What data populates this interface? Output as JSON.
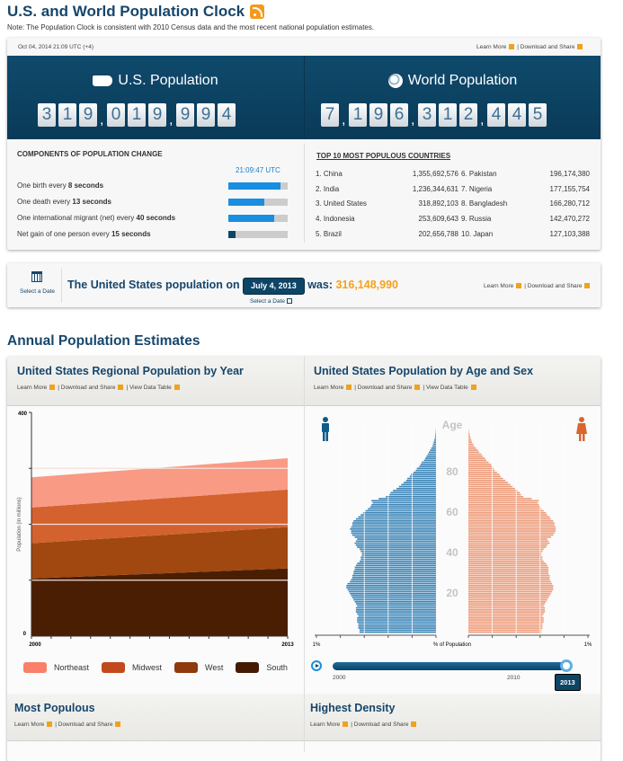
{
  "header": {
    "title": "U.S. and World Population Clock",
    "rss_icon": "rss-icon",
    "note": "Note: The Population Clock is consistent with 2010 Census data and the most recent national population estimates."
  },
  "clock": {
    "datetime": "Oct 04, 2014 21:09 UTC (+4)",
    "learn_more": "Learn More",
    "download_share": "| Download and Share",
    "us": {
      "title": "U.S. Population",
      "icon": "us-map-icon",
      "digits": [
        "3",
        "1",
        "9",
        ",",
        "0",
        "1",
        "9",
        ",",
        "9",
        "9",
        "4"
      ]
    },
    "world": {
      "title": "World Population",
      "icon": "globe-icon",
      "digits": [
        "7",
        ",",
        "1",
        "9",
        "6",
        ",",
        "3",
        "1",
        "2",
        ",",
        "4",
        "4",
        "5"
      ]
    },
    "components": {
      "heading": "COMPONENTS OF POPULATION CHANGE",
      "time": "21:09:47 UTC",
      "items": [
        {
          "prefix": "One birth every ",
          "bold": "8 seconds",
          "progress": 0.88,
          "color": "#1a8ee0"
        },
        {
          "prefix": "One death every ",
          "bold": "13 seconds",
          "progress": 0.6,
          "color": "#1a8ee0"
        },
        {
          "prefix": "One international migrant (net) every ",
          "bold": "40 seconds",
          "progress": 0.78,
          "color": "#1a8ee0"
        },
        {
          "prefix": "Net gain of one person every ",
          "bold": "15 seconds",
          "progress": 0.12,
          "color": "#0d4566"
        }
      ]
    },
    "top10": {
      "heading": "TOP 10 MOST POPULOUS COUNTRIES",
      "rows": [
        {
          "l": "1. China",
          "lv": "1,355,692,576",
          "r": "6. Pakistan",
          "rv": "196,174,380"
        },
        {
          "l": "2. India",
          "lv": "1,236,344,631",
          "r": "7. Nigeria",
          "rv": "177,155,754"
        },
        {
          "l": "3. United States",
          "lv": "318,892,103",
          "r": "8. Bangladesh",
          "rv": "166,280,712"
        },
        {
          "l": "4. Indonesia",
          "lv": "253,609,643",
          "r": "9. Russia",
          "rv": "142,470,272"
        },
        {
          "l": "5. Brazil",
          "lv": "202,656,788",
          "r": "10. Japan",
          "rv": "127,103,388"
        }
      ]
    }
  },
  "date_lookup": {
    "select_label": "Select a Date",
    "prefix": "The United States population on",
    "date": "July 4, 2013",
    "was": "was:",
    "value": "316,148,990",
    "select_below": "Select a Date",
    "learn_more": "Learn More",
    "download_share": "| Download and Share"
  },
  "section_title": "Annual Population Estimates",
  "regional": {
    "title": "United States Regional Population by Year",
    "links": [
      "Learn More",
      "| Download and Share",
      "| View Data Table"
    ]
  },
  "pyramid_panel": {
    "title": "United States Population by Age and Sex",
    "links": [
      "Learn More",
      "| Download and Share",
      "| View Data Table"
    ],
    "slider": {
      "value": 2013,
      "min": 2000,
      "max": 2013,
      "labels": [
        "2000",
        "2010"
      ],
      "tooltip": "2013"
    }
  },
  "most_populous": {
    "title": "Most Populous",
    "links": [
      "Learn More",
      "| Download and Share"
    ]
  },
  "highest_density": {
    "title": "Highest Density",
    "links": [
      "Learn More",
      "| Download and Share"
    ]
  },
  "chart_data": [
    {
      "type": "area",
      "stacked": true,
      "xlabel": "",
      "ylabel": "Population (in millions)",
      "ylim": [
        0,
        400
      ],
      "yticks": [
        "0",
        "400"
      ],
      "x": [
        2000,
        2013
      ],
      "xticks": [
        "2000",
        "2013"
      ],
      "grid": true,
      "legend": "bottom",
      "series": [
        {
          "name": "South",
          "values": [
            103,
            121
          ],
          "color": "#4a1e03"
        },
        {
          "name": "West",
          "values": [
            63,
            74
          ],
          "color": "#a0480f"
        },
        {
          "name": "Midwest",
          "values": [
            64,
            67
          ],
          "color": "#d4622e"
        },
        {
          "name": "Northeast",
          "values": [
            54,
            56
          ],
          "color": "#f99a85"
        }
      ],
      "legend_colors": [
        "#f9806a",
        "#c1491c",
        "#8e3a0c",
        "#451a03"
      ]
    },
    {
      "type": "bar",
      "orientation": "horizontal",
      "title": "",
      "xlabel": "% of Population",
      "ylabel": "Age",
      "xlim_label": "1%",
      "age_ticks": [
        "20",
        "40",
        "60",
        "80"
      ],
      "year": 2013,
      "male_color": "#3d86b8",
      "female_color": "#ee9c7b",
      "male": [
        0.64,
        0.64,
        0.65,
        0.65,
        0.65,
        0.66,
        0.66,
        0.66,
        0.65,
        0.66,
        0.67,
        0.67,
        0.67,
        0.66,
        0.67,
        0.68,
        0.69,
        0.7,
        0.71,
        0.72,
        0.73,
        0.74,
        0.75,
        0.75,
        0.74,
        0.72,
        0.71,
        0.7,
        0.7,
        0.69,
        0.69,
        0.68,
        0.68,
        0.67,
        0.66,
        0.64,
        0.63,
        0.63,
        0.62,
        0.62,
        0.63,
        0.64,
        0.66,
        0.67,
        0.68,
        0.67,
        0.66,
        0.68,
        0.7,
        0.71,
        0.71,
        0.72,
        0.71,
        0.7,
        0.7,
        0.69,
        0.67,
        0.65,
        0.63,
        0.61,
        0.59,
        0.57,
        0.55,
        0.54,
        0.53,
        0.54,
        0.48,
        0.42,
        0.39,
        0.38,
        0.36,
        0.33,
        0.31,
        0.29,
        0.27,
        0.25,
        0.24,
        0.22,
        0.21,
        0.19,
        0.17,
        0.16,
        0.14,
        0.13,
        0.12,
        0.1,
        0.09,
        0.08,
        0.07,
        0.06,
        0.05,
        0.04,
        0.03,
        0.025,
        0.02,
        0.015,
        0.01,
        0.008,
        0.005,
        0.003,
        0.002
      ],
      "female": [
        0.61,
        0.61,
        0.62,
        0.62,
        0.62,
        0.63,
        0.63,
        0.63,
        0.62,
        0.63,
        0.64,
        0.64,
        0.64,
        0.63,
        0.64,
        0.65,
        0.66,
        0.67,
        0.68,
        0.69,
        0.7,
        0.71,
        0.71,
        0.71,
        0.7,
        0.69,
        0.68,
        0.68,
        0.68,
        0.67,
        0.67,
        0.67,
        0.67,
        0.66,
        0.65,
        0.63,
        0.62,
        0.62,
        0.61,
        0.61,
        0.62,
        0.63,
        0.65,
        0.66,
        0.68,
        0.67,
        0.66,
        0.69,
        0.71,
        0.72,
        0.73,
        0.73,
        0.73,
        0.72,
        0.72,
        0.71,
        0.69,
        0.68,
        0.66,
        0.65,
        0.63,
        0.61,
        0.6,
        0.59,
        0.58,
        0.59,
        0.53,
        0.46,
        0.44,
        0.43,
        0.41,
        0.39,
        0.37,
        0.35,
        0.33,
        0.31,
        0.29,
        0.27,
        0.26,
        0.24,
        0.22,
        0.21,
        0.2,
        0.19,
        0.17,
        0.15,
        0.14,
        0.12,
        0.11,
        0.09,
        0.08,
        0.065,
        0.05,
        0.04,
        0.03,
        0.025,
        0.02,
        0.015,
        0.01,
        0.006,
        0.003
      ]
    }
  ]
}
